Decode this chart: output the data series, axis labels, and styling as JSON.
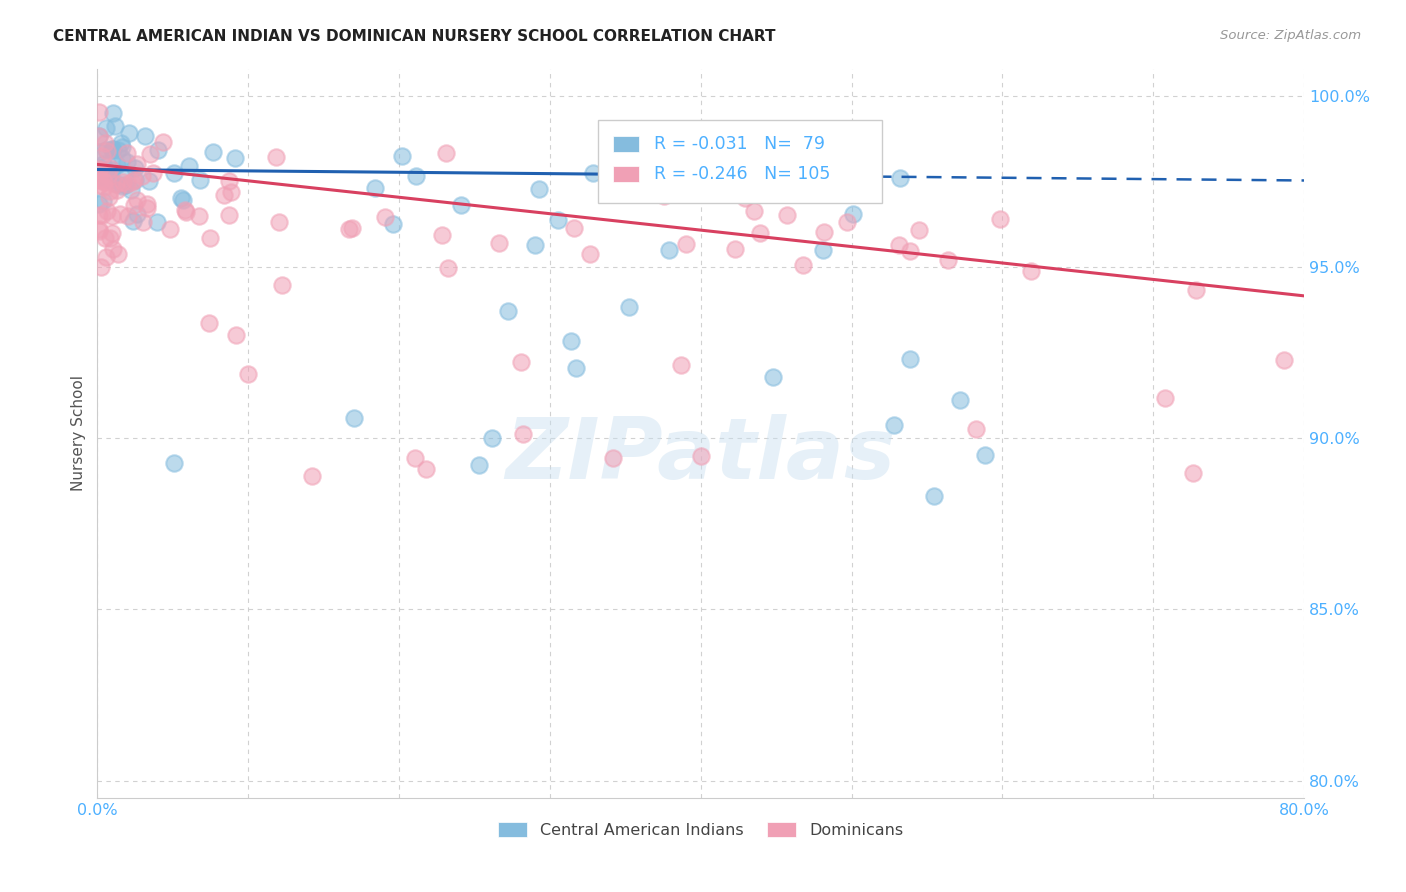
{
  "title": "CENTRAL AMERICAN INDIAN VS DOMINICAN NURSERY SCHOOL CORRELATION CHART",
  "source": "Source: ZipAtlas.com",
  "ylabel": "Nursery School",
  "xlim": [
    0.0,
    0.8
  ],
  "ylim": [
    0.795,
    1.008
  ],
  "yticks": [
    0.8,
    0.85,
    0.9,
    0.95,
    1.0
  ],
  "ytick_labels": [
    "80.0%",
    "85.0%",
    "90.0%",
    "95.0%",
    "100.0%"
  ],
  "xticks": [
    0.0,
    0.1,
    0.2,
    0.3,
    0.4,
    0.5,
    0.6,
    0.7,
    0.8
  ],
  "xtick_labels": [
    "0.0%",
    "",
    "",
    "",
    "",
    "",
    "",
    "",
    "80.0%"
  ],
  "blue_R": -0.031,
  "blue_N": 79,
  "pink_R": -0.246,
  "pink_N": 105,
  "blue_color": "#85bcde",
  "pink_color": "#f0a0b5",
  "blue_line_color": "#2060b0",
  "pink_line_color": "#d84060",
  "tick_color": "#4db0ff",
  "background_color": "#ffffff",
  "watermark": "ZIPatlas",
  "blue_line_intercept": 0.9785,
  "blue_line_slope": -0.004,
  "pink_line_intercept": 0.98,
  "pink_line_slope": -0.048
}
